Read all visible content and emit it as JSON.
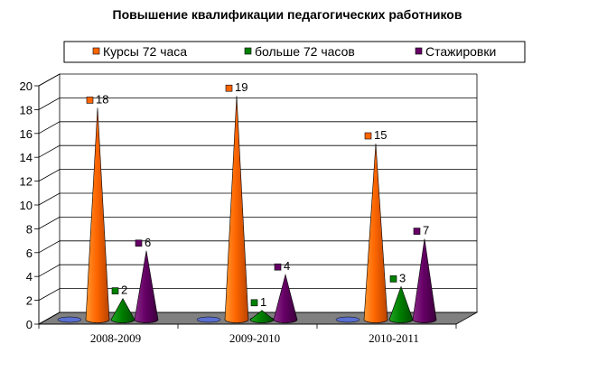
{
  "chart_data": {
    "type": "bar",
    "title": "Повышение квалификации педагогических работников",
    "categories": [
      "2008-2009",
      "2009-2010",
      "2010-2011"
    ],
    "series": [
      {
        "name": "Курсы 72 часа",
        "color": "#FF6600",
        "values": [
          18,
          19,
          15
        ]
      },
      {
        "name": "больше 72 часов",
        "color": "#008000",
        "values": [
          2,
          1,
          3
        ]
      },
      {
        "name": "Стажировки",
        "color": "#660066",
        "values": [
          6,
          4,
          7
        ]
      }
    ],
    "ylim": [
      0,
      20
    ],
    "yticks": [
      0,
      2,
      4,
      6,
      8,
      10,
      12,
      14,
      16,
      18,
      20
    ],
    "grid": true,
    "legend_position": "top"
  }
}
